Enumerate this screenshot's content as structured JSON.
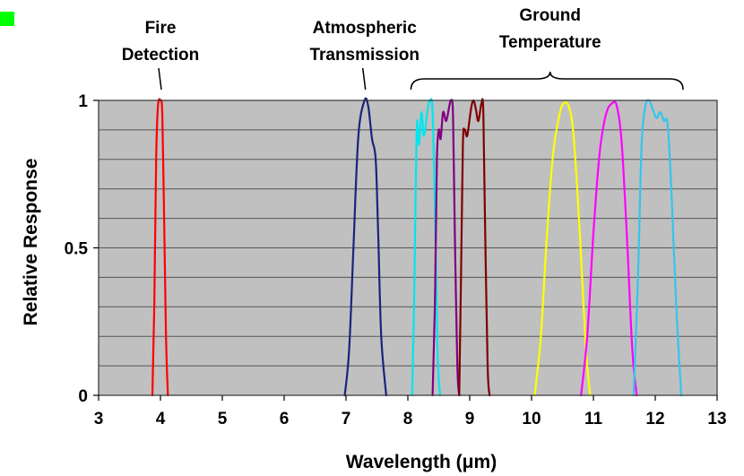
{
  "chart_data": {
    "type": "line",
    "xlabel": "Wavelength (μm)",
    "ylabel": "Relative Response",
    "xlim": [
      3,
      13
    ],
    "ylim": [
      0,
      1
    ],
    "x_ticks": [
      "3",
      "4",
      "5",
      "6",
      "7",
      "8",
      "9",
      "10",
      "11",
      "12",
      "13"
    ],
    "y_ticks": [
      {
        "value": 0,
        "label": "0"
      },
      {
        "value": 0.5,
        "label": "0.5"
      },
      {
        "value": 1,
        "label": "1"
      }
    ],
    "grid": true,
    "plot_background": "#c0c0c0",
    "marker_color": "#00ff00",
    "annotations": [
      {
        "line1": "Fire",
        "line2": "Detection",
        "x": 4.0
      },
      {
        "line1": "Atmospheric",
        "line2": "Transmission",
        "x": 7.3
      },
      {
        "line1": "Ground",
        "line2": "Temperature",
        "x": 10.3,
        "brace_from": 8.05,
        "brace_to": 12.45
      }
    ],
    "series": [
      {
        "color": "#ff0000",
        "points": [
          [
            3.87,
            0
          ],
          [
            3.9,
            0.3
          ],
          [
            3.93,
            0.8
          ],
          [
            3.96,
            0.98
          ],
          [
            4.0,
            1.0
          ],
          [
            4.03,
            0.95
          ],
          [
            4.06,
            0.6
          ],
          [
            4.09,
            0.2
          ],
          [
            4.12,
            0
          ]
        ]
      },
      {
        "color": "#1a237e",
        "points": [
          [
            6.98,
            0
          ],
          [
            7.05,
            0.15
          ],
          [
            7.12,
            0.5
          ],
          [
            7.2,
            0.88
          ],
          [
            7.3,
            1.0
          ],
          [
            7.36,
            0.98
          ],
          [
            7.42,
            0.87
          ],
          [
            7.48,
            0.8
          ],
          [
            7.52,
            0.55
          ],
          [
            7.57,
            0.2
          ],
          [
            7.65,
            0
          ]
        ]
      },
      {
        "color": "#00e5ee",
        "points": [
          [
            8.07,
            0
          ],
          [
            8.1,
            0.3
          ],
          [
            8.13,
            0.75
          ],
          [
            8.15,
            0.93
          ],
          [
            8.18,
            0.85
          ],
          [
            8.22,
            0.96
          ],
          [
            8.26,
            0.88
          ],
          [
            8.32,
            0.97
          ],
          [
            8.36,
            1.0
          ],
          [
            8.4,
            0.96
          ],
          [
            8.44,
            0.6
          ],
          [
            8.48,
            0.15
          ],
          [
            8.52,
            0
          ]
        ]
      },
      {
        "color": "#800080",
        "points": [
          [
            8.4,
            0
          ],
          [
            8.44,
            0.35
          ],
          [
            8.47,
            0.8
          ],
          [
            8.5,
            0.9
          ],
          [
            8.53,
            0.87
          ],
          [
            8.57,
            0.96
          ],
          [
            8.62,
            0.93
          ],
          [
            8.67,
            0.98
          ],
          [
            8.7,
            1.0
          ],
          [
            8.73,
            0.95
          ],
          [
            8.76,
            0.55
          ],
          [
            8.8,
            0.1
          ],
          [
            8.83,
            0
          ]
        ]
      },
      {
        "color": "#800000",
        "points": [
          [
            8.83,
            0
          ],
          [
            8.86,
            0.4
          ],
          [
            8.89,
            0.85
          ],
          [
            8.92,
            0.9
          ],
          [
            8.96,
            0.88
          ],
          [
            9.02,
            0.97
          ],
          [
            9.06,
            1.0
          ],
          [
            9.1,
            0.97
          ],
          [
            9.14,
            0.93
          ],
          [
            9.19,
            0.99
          ],
          [
            9.22,
            0.96
          ],
          [
            9.25,
            0.55
          ],
          [
            9.29,
            0.1
          ],
          [
            9.32,
            0
          ]
        ]
      },
      {
        "color": "#ffff00",
        "points": [
          [
            10.05,
            0
          ],
          [
            10.15,
            0.2
          ],
          [
            10.25,
            0.55
          ],
          [
            10.35,
            0.82
          ],
          [
            10.45,
            0.95
          ],
          [
            10.52,
            0.99
          ],
          [
            10.6,
            0.98
          ],
          [
            10.68,
            0.88
          ],
          [
            10.78,
            0.55
          ],
          [
            10.88,
            0.15
          ],
          [
            10.95,
            0
          ]
        ]
      },
      {
        "color": "#ff00ff",
        "points": [
          [
            10.8,
            0
          ],
          [
            10.9,
            0.2
          ],
          [
            11.0,
            0.55
          ],
          [
            11.1,
            0.82
          ],
          [
            11.2,
            0.95
          ],
          [
            11.3,
            0.99
          ],
          [
            11.38,
            0.98
          ],
          [
            11.46,
            0.85
          ],
          [
            11.55,
            0.5
          ],
          [
            11.63,
            0.15
          ],
          [
            11.7,
            0
          ]
        ]
      },
      {
        "color": "#33c5ee",
        "points": [
          [
            11.65,
            0
          ],
          [
            11.72,
            0.4
          ],
          [
            11.78,
            0.85
          ],
          [
            11.84,
            0.98
          ],
          [
            11.9,
            1.0
          ],
          [
            11.96,
            0.97
          ],
          [
            12.02,
            0.94
          ],
          [
            12.08,
            0.96
          ],
          [
            12.14,
            0.93
          ],
          [
            12.2,
            0.92
          ],
          [
            12.26,
            0.7
          ],
          [
            12.34,
            0.3
          ],
          [
            12.42,
            0
          ]
        ]
      }
    ]
  }
}
